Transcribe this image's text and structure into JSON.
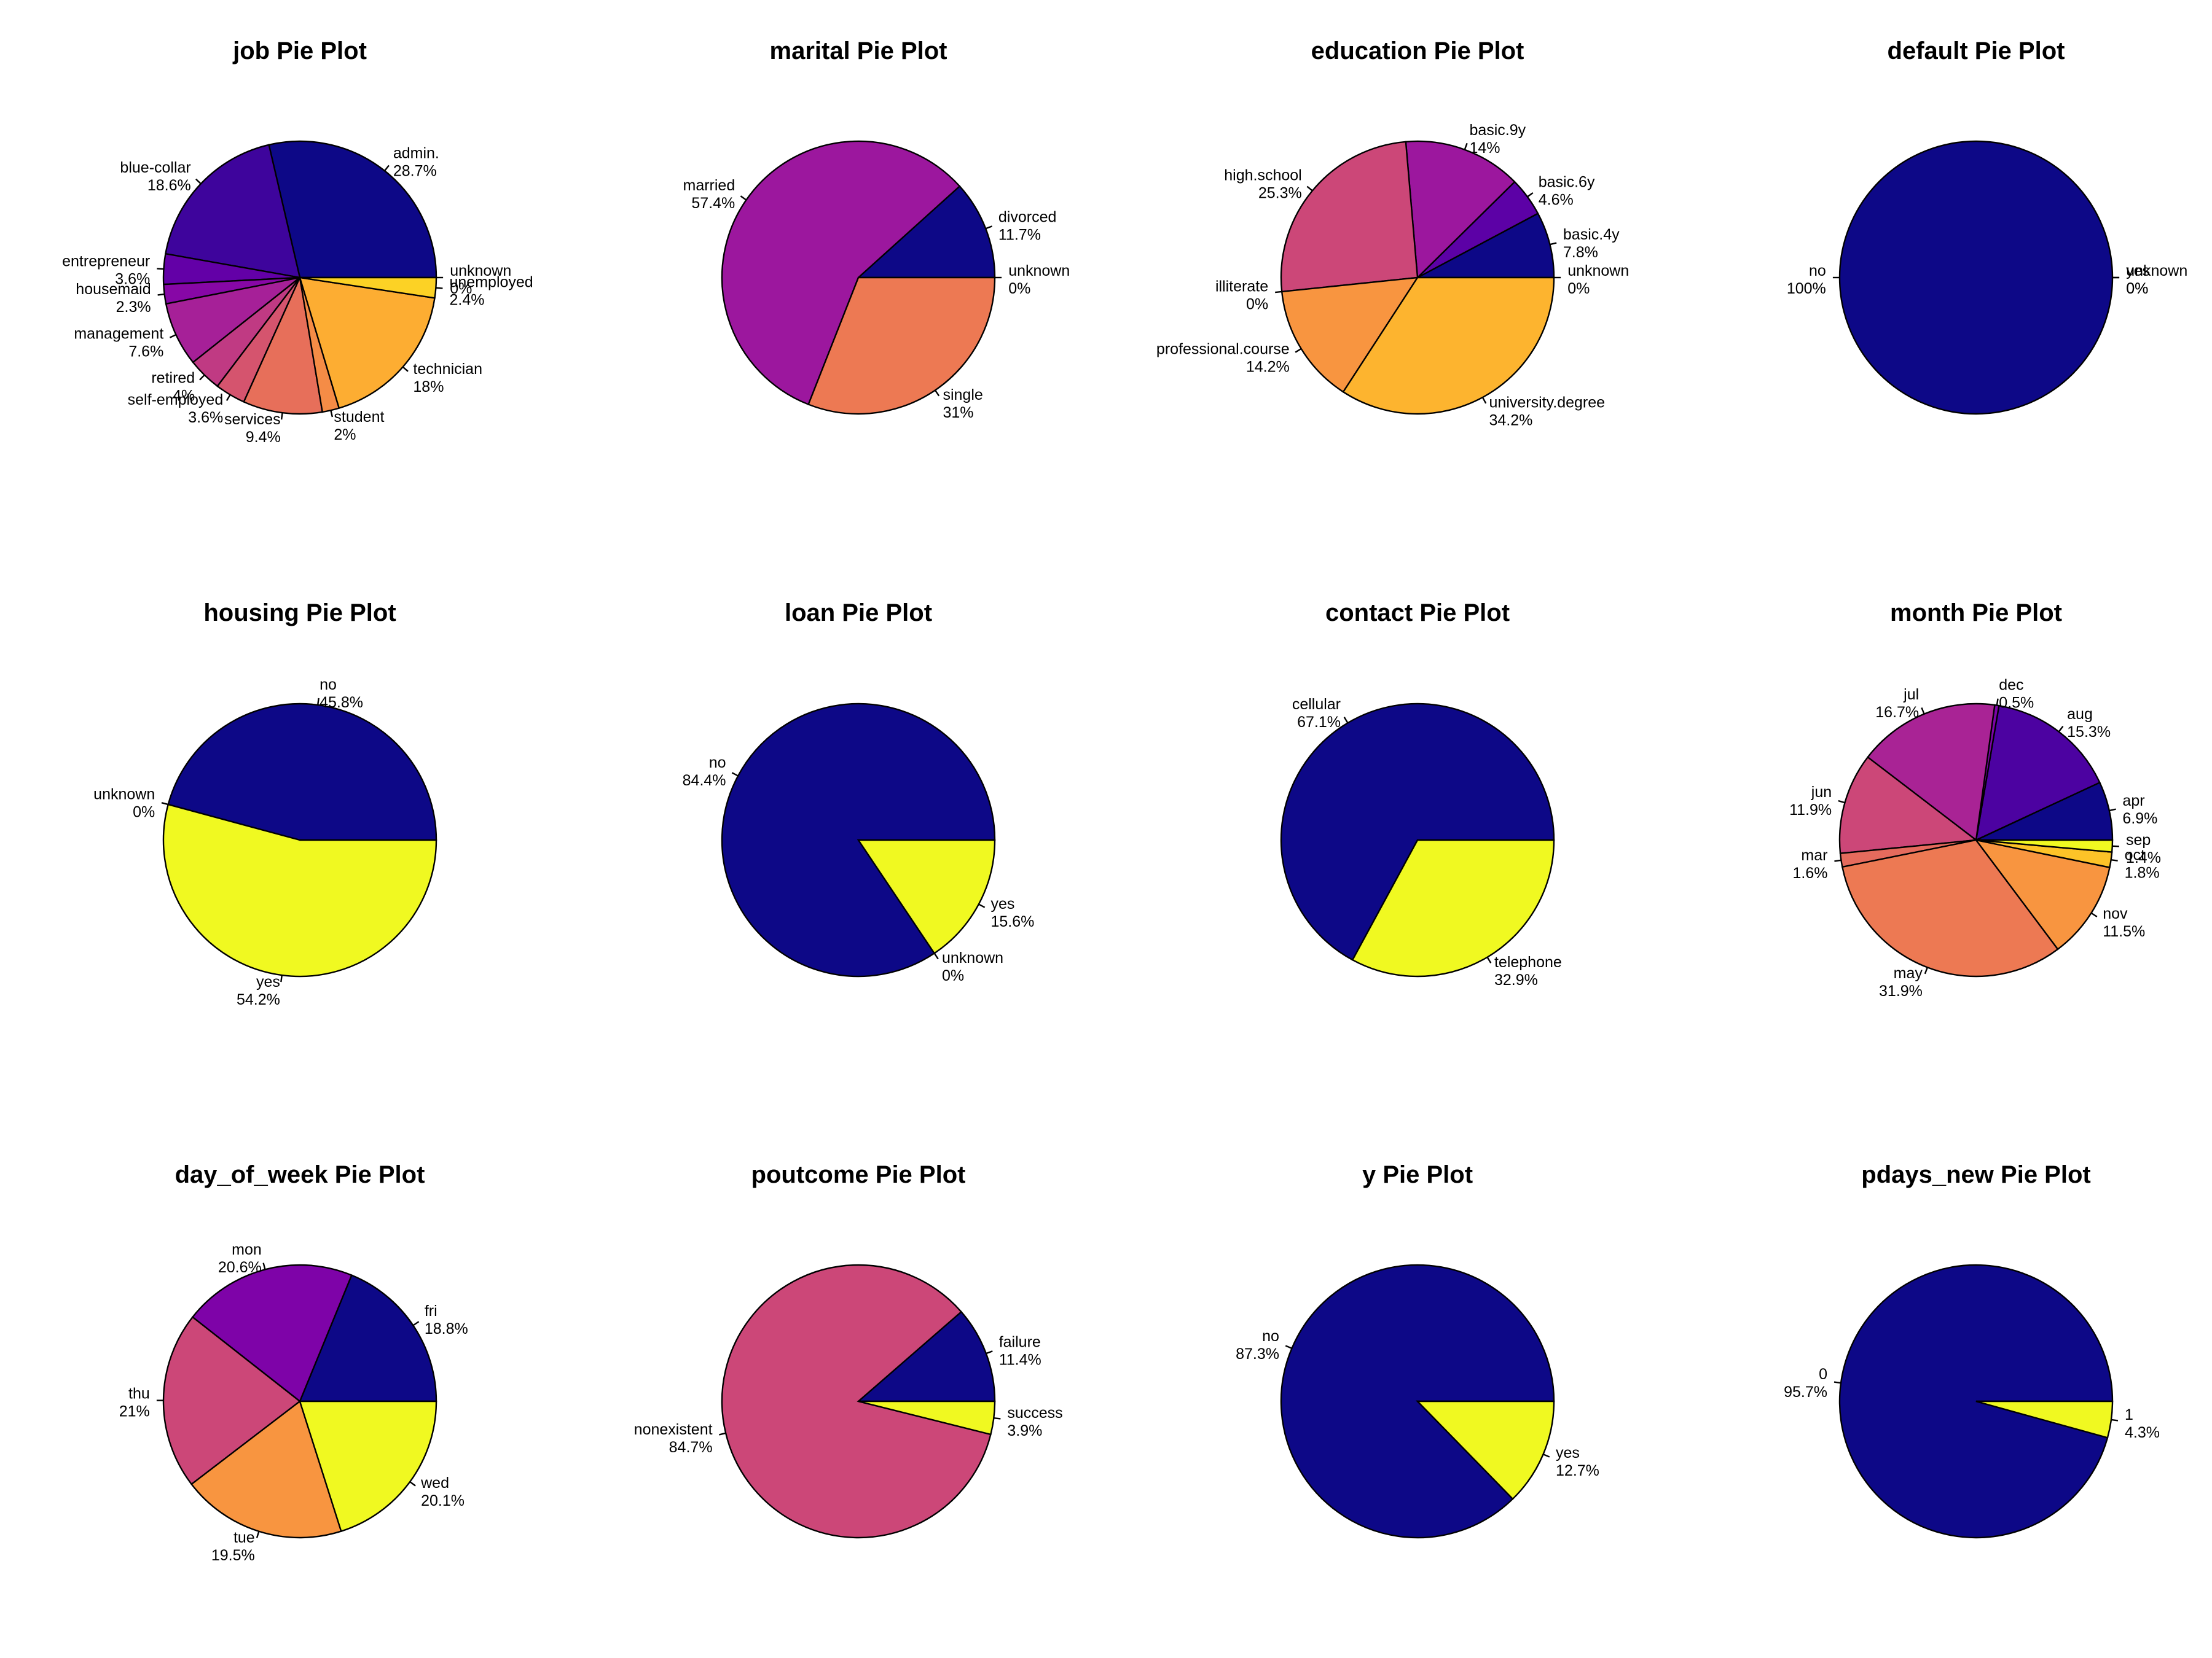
{
  "chart_data": [
    {
      "type": "pie",
      "title": "job Pie Plot",
      "slices": [
        {
          "label": "admin.",
          "value": 28.7,
          "pct": "28.7%",
          "color": "#0d0887"
        },
        {
          "label": "blue-collar",
          "value": 18.6,
          "pct": "18.6%",
          "color": "#3e049c"
        },
        {
          "label": "entrepreneur",
          "value": 3.6,
          "pct": "3.6%",
          "color": "#6300a7"
        },
        {
          "label": "housemaid",
          "value": 2.3,
          "pct": "2.3%",
          "color": "#8707a6"
        },
        {
          "label": "management",
          "value": 7.6,
          "pct": "7.6%",
          "color": "#a62098"
        },
        {
          "label": "retired",
          "value": 4,
          "pct": "4%",
          "color": "#c03a83"
        },
        {
          "label": "self-employed",
          "value": 3.6,
          "pct": "3.6%",
          "color": "#d5546e"
        },
        {
          "label": "services",
          "value": 9.4,
          "pct": "9.4%",
          "color": "#e76f5a"
        },
        {
          "label": "student",
          "value": 2,
          "pct": "2%",
          "color": "#f58c46"
        },
        {
          "label": "technician",
          "value": 18,
          "pct": "18%",
          "color": "#fdad32"
        },
        {
          "label": "unemployed",
          "value": 2.4,
          "pct": "2.4%",
          "color": "#fcd225"
        },
        {
          "label": "unknown",
          "value": 0,
          "pct": "0%",
          "color": "#f0f921"
        }
      ]
    },
    {
      "type": "pie",
      "title": "marital Pie Plot",
      "slices": [
        {
          "label": "divorced",
          "value": 11.7,
          "pct": "11.7%",
          "color": "#0d0887"
        },
        {
          "label": "married",
          "value": 57.4,
          "pct": "57.4%",
          "color": "#9c179e"
        },
        {
          "label": "single",
          "value": 31,
          "pct": "31%",
          "color": "#ed7953"
        },
        {
          "label": "unknown",
          "value": 0,
          "pct": "0%",
          "color": "#f0f921"
        }
      ]
    },
    {
      "type": "pie",
      "title": "education Pie Plot",
      "slices": [
        {
          "label": "basic.4y",
          "value": 7.8,
          "pct": "7.8%",
          "color": "#0d0887"
        },
        {
          "label": "basic.6y",
          "value": 4.6,
          "pct": "4.6%",
          "color": "#5c01a6"
        },
        {
          "label": "basic.9y",
          "value": 14,
          "pct": "14%",
          "color": "#9c179e"
        },
        {
          "label": "high.school",
          "value": 25.3,
          "pct": "25.3%",
          "color": "#cc4778"
        },
        {
          "label": "illiterate",
          "value": 0,
          "pct": "0%",
          "color": "#ed7953"
        },
        {
          "label": "professional.course",
          "value": 14.2,
          "pct": "14.2%",
          "color": "#f89540"
        },
        {
          "label": "university.degree",
          "value": 34.2,
          "pct": "34.2%",
          "color": "#fdb42f"
        },
        {
          "label": "unknown",
          "value": 0,
          "pct": "0%",
          "color": "#f0f921"
        }
      ]
    },
    {
      "type": "pie",
      "title": "default Pie Plot",
      "slices": [
        {
          "label": "no",
          "value": 100,
          "pct": "100%",
          "color": "#0d0887"
        },
        {
          "label": "unknown",
          "value": 0,
          "pct": "0%",
          "color": "#cc4778"
        },
        {
          "label": "yes",
          "value": 0,
          "pct": "0%",
          "color": "#f0f921"
        }
      ]
    },
    {
      "type": "pie",
      "title": "housing Pie Plot",
      "slices": [
        {
          "label": "no",
          "value": 45.8,
          "pct": "45.8%",
          "color": "#0d0887"
        },
        {
          "label": "unknown",
          "value": 0,
          "pct": "0%",
          "color": "#cc4778"
        },
        {
          "label": "yes",
          "value": 54.2,
          "pct": "54.2%",
          "color": "#f0f921"
        }
      ]
    },
    {
      "type": "pie",
      "title": "loan Pie Plot",
      "slices": [
        {
          "label": "no",
          "value": 84.4,
          "pct": "84.4%",
          "color": "#0d0887"
        },
        {
          "label": "unknown",
          "value": 0,
          "pct": "0%",
          "color": "#cc4778"
        },
        {
          "label": "yes",
          "value": 15.6,
          "pct": "15.6%",
          "color": "#f0f921"
        }
      ]
    },
    {
      "type": "pie",
      "title": "contact Pie Plot",
      "slices": [
        {
          "label": "cellular",
          "value": 67.1,
          "pct": "67.1%",
          "color": "#0d0887"
        },
        {
          "label": "telephone",
          "value": 32.9,
          "pct": "32.9%",
          "color": "#f0f921"
        }
      ]
    },
    {
      "type": "pie",
      "title": "month Pie Plot",
      "slices": [
        {
          "label": "apr",
          "value": 6.9,
          "pct": "6.9%",
          "color": "#0d0887"
        },
        {
          "label": "aug",
          "value": 15.3,
          "pct": "15.3%",
          "color": "#4c02a1"
        },
        {
          "label": "dec",
          "value": 0.5,
          "pct": "0.5%",
          "color": "#7e03a8"
        },
        {
          "label": "jul",
          "value": 16.7,
          "pct": "16.7%",
          "color": "#a92395"
        },
        {
          "label": "jun",
          "value": 11.9,
          "pct": "11.9%",
          "color": "#cc4778"
        },
        {
          "label": "mar",
          "value": 1.6,
          "pct": "1.6%",
          "color": "#e56b5d"
        },
        {
          "label": "may",
          "value": 31.9,
          "pct": "31.9%",
          "color": "#ed7953"
        },
        {
          "label": "nov",
          "value": 11.5,
          "pct": "11.5%",
          "color": "#f89540"
        },
        {
          "label": "oct",
          "value": 1.8,
          "pct": "1.8%",
          "color": "#fdc328"
        },
        {
          "label": "sep",
          "value": 1.4,
          "pct": "1.4%",
          "color": "#f0f921"
        }
      ]
    },
    {
      "type": "pie",
      "title": "day_of_week Pie Plot",
      "slices": [
        {
          "label": "fri",
          "value": 18.8,
          "pct": "18.8%",
          "color": "#0d0887"
        },
        {
          "label": "mon",
          "value": 20.6,
          "pct": "20.6%",
          "color": "#7e03a8"
        },
        {
          "label": "thu",
          "value": 21,
          "pct": "21%",
          "color": "#cc4778"
        },
        {
          "label": "tue",
          "value": 19.5,
          "pct": "19.5%",
          "color": "#f89540"
        },
        {
          "label": "wed",
          "value": 20.1,
          "pct": "20.1%",
          "color": "#f0f921"
        }
      ]
    },
    {
      "type": "pie",
      "title": "poutcome Pie Plot",
      "slices": [
        {
          "label": "failure",
          "value": 11.4,
          "pct": "11.4%",
          "color": "#0d0887"
        },
        {
          "label": "nonexistent",
          "value": 84.7,
          "pct": "84.7%",
          "color": "#cc4778"
        },
        {
          "label": "success",
          "value": 3.9,
          "pct": "3.9%",
          "color": "#f0f921"
        }
      ]
    },
    {
      "type": "pie",
      "title": "y Pie Plot",
      "slices": [
        {
          "label": "no",
          "value": 87.3,
          "pct": "87.3%",
          "color": "#0d0887"
        },
        {
          "label": "yes",
          "value": 12.7,
          "pct": "12.7%",
          "color": "#f0f921"
        }
      ]
    },
    {
      "type": "pie",
      "title": "pdays_new Pie Plot",
      "slices": [
        {
          "label": "0",
          "value": 95.7,
          "pct": "95.7%",
          "color": "#0d0887"
        },
        {
          "label": "1",
          "value": 4.3,
          "pct": "4.3%",
          "color": "#f0f921"
        }
      ]
    }
  ]
}
